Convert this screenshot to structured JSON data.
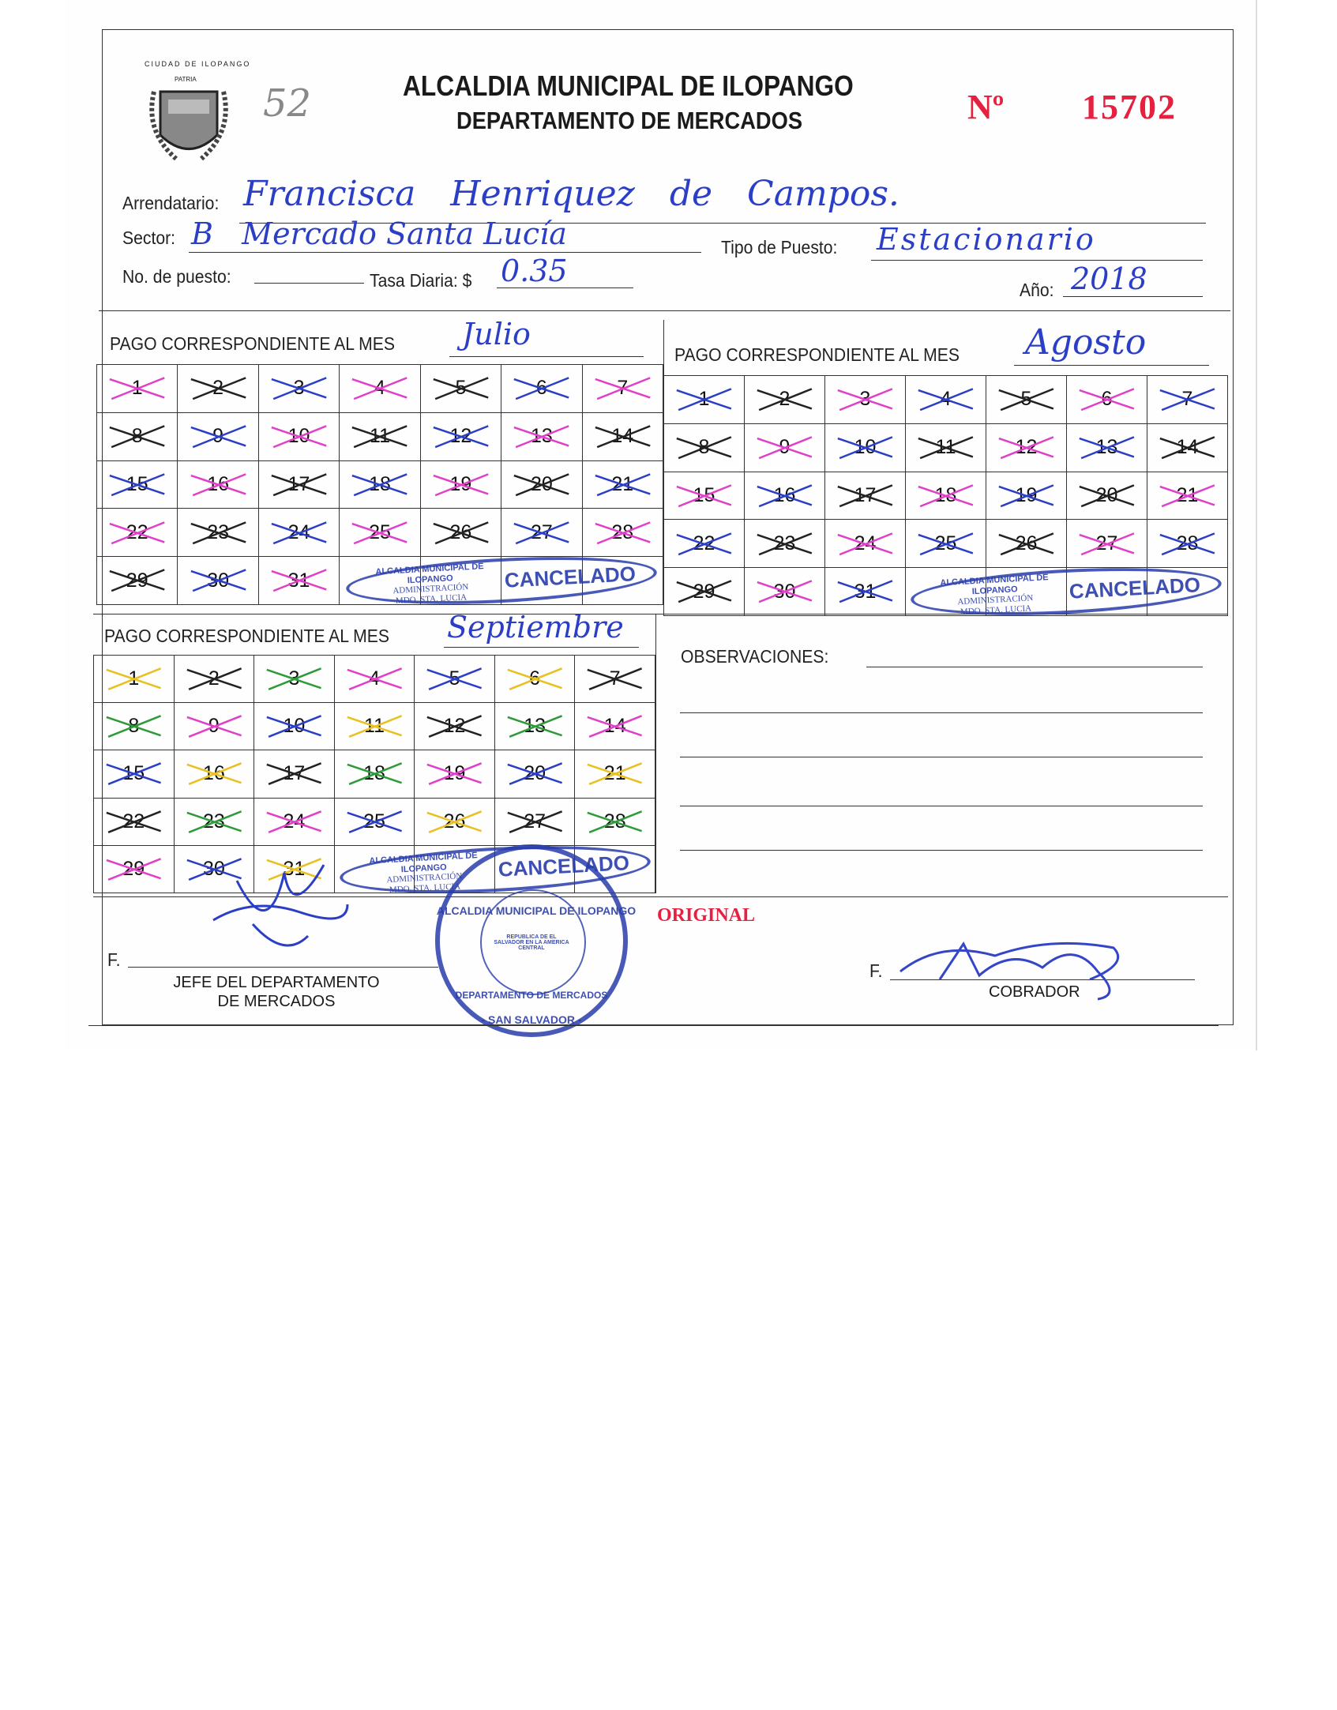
{
  "header": {
    "logo_text": "CIUDAD DE ILOPANGO",
    "logo_motto": "PATRIA",
    "handwritten_number": "52",
    "title": "ALCALDIA MUNICIPAL DE ILOPANGO",
    "subtitle": "DEPARTAMENTO DE MERCADOS",
    "number_label": "Nº",
    "number": "15702"
  },
  "fields": {
    "arrendatario_label": "Arrendatario:",
    "arrendatario_value": "Francisca Henriquez de Campos.",
    "sector_label": "Sector:",
    "sector_value": "B   Mercado Santa Lucía",
    "tipo_label": "Tipo de Puesto:",
    "tipo_value": "Estacionario",
    "puesto_label": "No. de puesto:",
    "puesto_value": "",
    "tasa_label": "Tasa Diaria: $",
    "tasa_value": "0.35",
    "anio_label": "Año:",
    "anio_value": "2018"
  },
  "months": [
    {
      "label": "PAGO CORRESPONDIENTE AL MES",
      "month": "Julio",
      "days_paid": 31,
      "mark_colors": [
        "#2b3ec6",
        "#e040c8",
        "#222222"
      ]
    },
    {
      "label": "PAGO CORRESPONDIENTE AL MES",
      "month": "Agosto",
      "days_paid": 31,
      "mark_colors": [
        "#222222",
        "#e040c8",
        "#2b3ec6"
      ]
    },
    {
      "label": "PAGO CORRESPONDIENTE AL MES",
      "month": "Septiembre",
      "days_paid": 31,
      "mark_colors": [
        "#e040c8",
        "#222222",
        "#2b3ec6",
        "#2e9a3a",
        "#e8c020"
      ]
    }
  ],
  "stamps": {
    "cancel_ring": "ALCALDIA MUNICIPAL DE ILOPANGO",
    "cancel_admin": "ADMINISTRACIÓN",
    "cancel_market": "MDO. STA. LUCIA",
    "cancel_word": "CANCELADO",
    "seal_ring": "ALCALDIA MUNICIPAL DE ILOPANGO",
    "seal_dept": "DEPARTAMENTO DE MERCADOS",
    "seal_city": "- SAN SALVADOR -",
    "seal_inner": "REPUBLICA DE EL SALVADOR EN LA AMERICA CENTRAL"
  },
  "observaciones_label": "OBSERVACIONES:",
  "original_label": "ORIGINAL",
  "signatures": {
    "left_prefix": "F.",
    "left_title_1": "JEFE DEL DEPARTAMENTO",
    "left_title_2": "DE MERCADOS",
    "right_prefix": "F.",
    "right_title": "COBRADOR"
  },
  "colors": {
    "ink_blue": "#2b3ec6",
    "serial_red": "#e8203f",
    "stamp_blue": "#283caa"
  }
}
